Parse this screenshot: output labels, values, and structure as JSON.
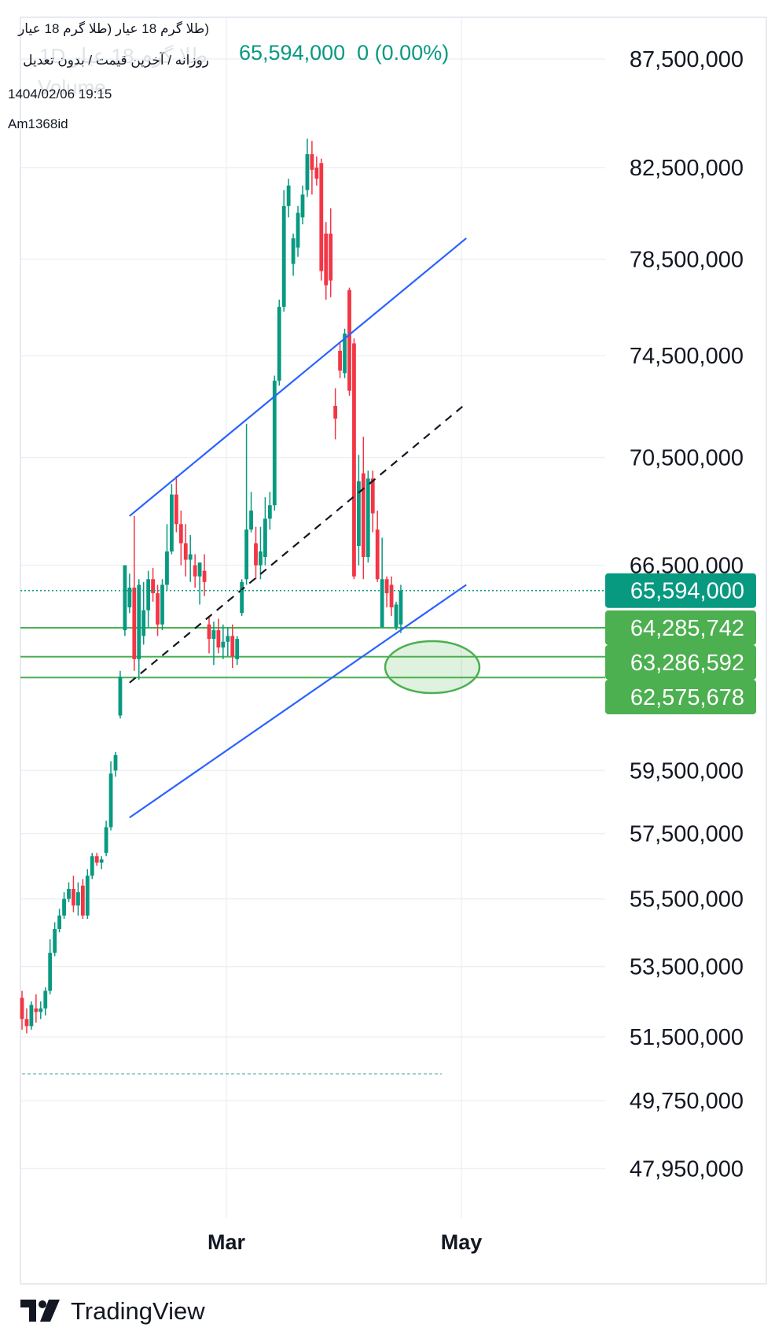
{
  "legend": {
    "title": "(طلا گرم 18 عیار (طلا گرم 18 عیار",
    "subtitle": "روزانه / آخرین قیمت / بدون تعدیل",
    "timestamp": "1404/02/06 19:15",
    "user": "Am1368id",
    "ghost_symbol": "طلا گرم 18 عیار 1D",
    "ghost_volume": "Volume",
    "price": "65,594,000",
    "change": "0 (0.00%)"
  },
  "brand": {
    "name": "TradingView"
  },
  "colors": {
    "up": "#089981",
    "down": "#f23645",
    "trend_line": "#2962ff",
    "midline": "#131722",
    "support": "#4caf50",
    "support_label_bg": "#4caf50",
    "last_price_bg": "#089981",
    "grid": "#eef0f3"
  },
  "chart_data": {
    "type": "candlestick",
    "symbol": "طلا گرم 18 عیار",
    "timeframe": "1D",
    "y_ticks": [
      "87,500,000",
      "82,500,000",
      "78,500,000",
      "74,500,000",
      "70,500,000",
      "66,500,000",
      "59,500,000",
      "57,500,000",
      "55,500,000",
      "53,500,000",
      "51,500,000",
      "49,750,000",
      "47,950,000"
    ],
    "x_ticks": [
      "Mar",
      "May"
    ],
    "last_price": {
      "value": 65594000,
      "label": "65,594,000"
    },
    "support_levels": [
      {
        "value": 64285742,
        "label": "64,285,742"
      },
      {
        "value": 63286592,
        "label": "63,286,592"
      },
      {
        "value": 62575678,
        "label": "62,575,678"
      }
    ],
    "candles": [
      {
        "o": 52600000,
        "h": 52800000,
        "l": 51700000,
        "c": 52000000
      },
      {
        "o": 52000000,
        "h": 52300000,
        "l": 51600000,
        "c": 51800000
      },
      {
        "o": 51800000,
        "h": 52500000,
        "l": 51700000,
        "c": 52400000
      },
      {
        "o": 52300000,
        "h": 52700000,
        "l": 51900000,
        "c": 52200000
      },
      {
        "o": 52200000,
        "h": 52500000,
        "l": 52000000,
        "c": 52300000
      },
      {
        "o": 52300000,
        "h": 52900000,
        "l": 52100000,
        "c": 52800000
      },
      {
        "o": 52800000,
        "h": 54300000,
        "l": 52700000,
        "c": 53900000
      },
      {
        "o": 53900000,
        "h": 54800000,
        "l": 53800000,
        "c": 54600000
      },
      {
        "o": 54600000,
        "h": 55200000,
        "l": 54500000,
        "c": 55000000
      },
      {
        "o": 55000000,
        "h": 55700000,
        "l": 54900000,
        "c": 55500000
      },
      {
        "o": 55500000,
        "h": 56000000,
        "l": 55400000,
        "c": 55800000
      },
      {
        "o": 55800000,
        "h": 56200000,
        "l": 55100000,
        "c": 55300000
      },
      {
        "o": 55300000,
        "h": 56000000,
        "l": 55000000,
        "c": 55700000
      },
      {
        "o": 55900000,
        "h": 56100000,
        "l": 54900000,
        "c": 55000000
      },
      {
        "o": 55000000,
        "h": 56400000,
        "l": 54900000,
        "c": 56200000
      },
      {
        "o": 56200000,
        "h": 56900000,
        "l": 56100000,
        "c": 56800000
      },
      {
        "o": 56800000,
        "h": 56900000,
        "l": 56500000,
        "c": 56600000
      },
      {
        "o": 56600000,
        "h": 56800000,
        "l": 56400000,
        "c": 56700000
      },
      {
        "o": 56900000,
        "h": 57900000,
        "l": 56800000,
        "c": 57700000
      },
      {
        "o": 57700000,
        "h": 59800000,
        "l": 57600000,
        "c": 59400000
      },
      {
        "o": 59500000,
        "h": 60100000,
        "l": 59300000,
        "c": 60000000
      },
      {
        "o": 61300000,
        "h": 62800000,
        "l": 61200000,
        "c": 62600000
      },
      {
        "o": 64200000,
        "h": 66500000,
        "l": 64000000,
        "c": 66500000
      },
      {
        "o": 65000000,
        "h": 66200000,
        "l": 64800000,
        "c": 65700000
      },
      {
        "o": 65700000,
        "h": 68300000,
        "l": 62800000,
        "c": 63200000
      },
      {
        "o": 63200000,
        "h": 66000000,
        "l": 62500000,
        "c": 65800000
      },
      {
        "o": 64000000,
        "h": 65900000,
        "l": 63700000,
        "c": 64900000
      },
      {
        "o": 64900000,
        "h": 66300000,
        "l": 64300000,
        "c": 66000000
      },
      {
        "o": 66000000,
        "h": 66400000,
        "l": 65200000,
        "c": 65500000
      },
      {
        "o": 65500000,
        "h": 65800000,
        "l": 64000000,
        "c": 64400000
      },
      {
        "o": 64400000,
        "h": 66000000,
        "l": 64200000,
        "c": 65800000
      },
      {
        "o": 65800000,
        "h": 68000000,
        "l": 65600000,
        "c": 67000000
      },
      {
        "o": 67000000,
        "h": 69500000,
        "l": 66900000,
        "c": 69100000
      },
      {
        "o": 69100000,
        "h": 69800000,
        "l": 67700000,
        "c": 68000000
      },
      {
        "o": 68000000,
        "h": 68500000,
        "l": 66500000,
        "c": 67300000
      },
      {
        "o": 67300000,
        "h": 68000000,
        "l": 66100000,
        "c": 66700000
      },
      {
        "o": 66700000,
        "h": 67600000,
        "l": 65900000,
        "c": 66900000
      },
      {
        "o": 66500000,
        "h": 66900000,
        "l": 65700000,
        "c": 66100000
      },
      {
        "o": 66100000,
        "h": 66600000,
        "l": 65100000,
        "c": 66600000
      },
      {
        "o": 66300000,
        "h": 66900000,
        "l": 65400000,
        "c": 65900000
      },
      {
        "o": 64400000,
        "h": 64700000,
        "l": 63400000,
        "c": 63900000
      },
      {
        "o": 63900000,
        "h": 64500000,
        "l": 63000000,
        "c": 64200000
      },
      {
        "o": 64200000,
        "h": 64600000,
        "l": 63400000,
        "c": 63600000
      },
      {
        "o": 63600000,
        "h": 64400000,
        "l": 63200000,
        "c": 63800000
      },
      {
        "o": 63800000,
        "h": 64300000,
        "l": 63300000,
        "c": 64000000
      },
      {
        "o": 64000000,
        "h": 64400000,
        "l": 62900000,
        "c": 63300000
      },
      {
        "o": 63200000,
        "h": 64000000,
        "l": 63000000,
        "c": 63900000
      },
      {
        "o": 64800000,
        "h": 66000000,
        "l": 64700000,
        "c": 65900000
      },
      {
        "o": 66000000,
        "h": 71800000,
        "l": 65800000,
        "c": 67800000
      },
      {
        "o": 67800000,
        "h": 69200000,
        "l": 67700000,
        "c": 68500000
      },
      {
        "o": 67300000,
        "h": 67900000,
        "l": 66000000,
        "c": 66500000
      },
      {
        "o": 66500000,
        "h": 67900000,
        "l": 66000000,
        "c": 67000000
      },
      {
        "o": 66800000,
        "h": 69000000,
        "l": 66500000,
        "c": 68200000
      },
      {
        "o": 68200000,
        "h": 69200000,
        "l": 67800000,
        "c": 68700000
      },
      {
        "o": 68700000,
        "h": 73700000,
        "l": 68500000,
        "c": 73500000
      },
      {
        "o": 73500000,
        "h": 76800000,
        "l": 73300000,
        "c": 76500000
      },
      {
        "o": 76500000,
        "h": 81500000,
        "l": 76300000,
        "c": 80800000
      },
      {
        "o": 80800000,
        "h": 82000000,
        "l": 80300000,
        "c": 81700000
      },
      {
        "o": 78300000,
        "h": 79600000,
        "l": 77800000,
        "c": 79400000
      },
      {
        "o": 79000000,
        "h": 80800000,
        "l": 78600000,
        "c": 80500000
      },
      {
        "o": 80300000,
        "h": 81700000,
        "l": 80000000,
        "c": 81300000
      },
      {
        "o": 81500000,
        "h": 83800000,
        "l": 81200000,
        "c": 83100000
      },
      {
        "o": 83100000,
        "h": 83700000,
        "l": 81300000,
        "c": 82400000
      },
      {
        "o": 82500000,
        "h": 83000000,
        "l": 81700000,
        "c": 82000000
      },
      {
        "o": 82700000,
        "h": 82900000,
        "l": 77600000,
        "c": 78000000
      },
      {
        "o": 79600000,
        "h": 80100000,
        "l": 76800000,
        "c": 77400000
      },
      {
        "o": 79600000,
        "h": 80700000,
        "l": 76900000,
        "c": 77600000
      },
      {
        "o": 72500000,
        "h": 73200000,
        "l": 71200000,
        "c": 72000000
      },
      {
        "o": 74700000,
        "h": 75000000,
        "l": 73600000,
        "c": 73900000
      },
      {
        "o": 73800000,
        "h": 75600000,
        "l": 73600000,
        "c": 75400000
      },
      {
        "o": 77200000,
        "h": 77300000,
        "l": 72900000,
        "c": 73100000
      },
      {
        "o": 75000000,
        "h": 75200000,
        "l": 66000000,
        "c": 66100000
      },
      {
        "o": 67200000,
        "h": 70600000,
        "l": 66500000,
        "c": 69600000
      },
      {
        "o": 69900000,
        "h": 71300000,
        "l": 66000000,
        "c": 66800000
      },
      {
        "o": 66800000,
        "h": 70000000,
        "l": 66600000,
        "c": 69700000
      },
      {
        "o": 69700000,
        "h": 70000000,
        "l": 67700000,
        "c": 68400000
      },
      {
        "o": 67800000,
        "h": 68500000,
        "l": 65900000,
        "c": 66000000
      },
      {
        "o": 64300000,
        "h": 67500000,
        "l": 64300000,
        "c": 66000000
      },
      {
        "o": 66000000,
        "h": 66100000,
        "l": 65000000,
        "c": 65500000
      },
      {
        "o": 65800000,
        "h": 66100000,
        "l": 64700000,
        "c": 65000000
      },
      {
        "o": 64300000,
        "h": 65200000,
        "l": 64200000,
        "c": 65100000
      },
      {
        "o": 64400000,
        "h": 65800000,
        "l": 64100000,
        "c": 65594000
      }
    ],
    "trendlines": [
      {
        "name": "upper-channel",
        "style": "solid",
        "from": {
          "i": 23,
          "p": 68300000
        },
        "to": {
          "i": 95,
          "p": 79400000
        }
      },
      {
        "name": "lower-channel",
        "style": "solid",
        "from": {
          "i": 23,
          "p": 58000000
        },
        "to": {
          "i": 95,
          "p": 65800000
        }
      },
      {
        "name": "mid-channel",
        "style": "dashed",
        "from": {
          "i": 23,
          "p": 62400000
        },
        "to": {
          "i": 95,
          "p": 72600000
        }
      }
    ]
  }
}
